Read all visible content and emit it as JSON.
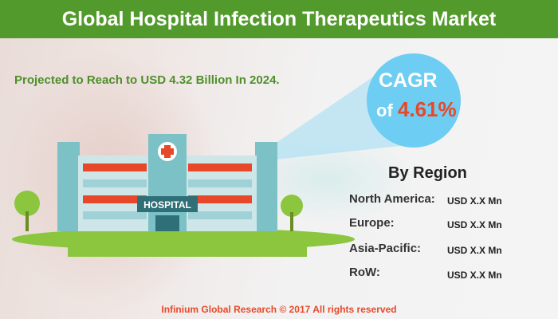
{
  "header": {
    "title": "Global Hospital Infection Therapeutics Market"
  },
  "subtitle": "Projected to Reach to USD 4.32 Billion In 2024.",
  "cagr": {
    "label": "CAGR",
    "of": "of",
    "value": "4.61%"
  },
  "building": {
    "sign": "HOSPITAL"
  },
  "region": {
    "title": "By Region",
    "rows": [
      {
        "label": "North America:",
        "value": "USD X.X Mn"
      },
      {
        "label": "Europe:",
        "value": "USD X.X Mn"
      },
      {
        "label": "Asia-Pacific:",
        "value": "USD X.X Mn"
      },
      {
        "label": "RoW:",
        "value": "USD X.X Mn"
      }
    ]
  },
  "footer": "Infinium Global Research © 2017 All rights reserved",
  "colors": {
    "header": "#529a2b",
    "accent": "#e8482a",
    "circle": "#6dcdf2",
    "grass": "#8cc63f"
  }
}
